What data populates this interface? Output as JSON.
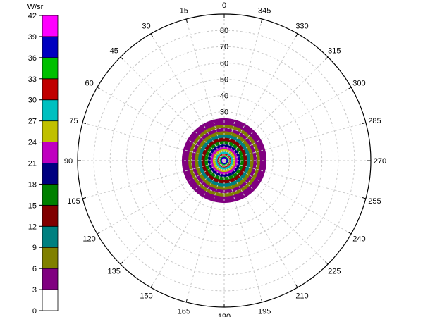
{
  "chart_data": {
    "type": "heatmap",
    "subtype": "polar-intensity",
    "colorbar": {
      "unit_label": "W/sr",
      "ticks": [
        "0",
        "3",
        "6",
        "9",
        "12",
        "15",
        "18",
        "21",
        "24",
        "27",
        "30",
        "33",
        "36",
        "39",
        "42"
      ],
      "bands": [
        {
          "min": 0,
          "max": 3,
          "color": "#ffffff"
        },
        {
          "min": 3,
          "max": 6,
          "color": "#800080"
        },
        {
          "min": 6,
          "max": 9,
          "color": "#808000"
        },
        {
          "min": 9,
          "max": 12,
          "color": "#008080"
        },
        {
          "min": 12,
          "max": 15,
          "color": "#800000"
        },
        {
          "min": 15,
          "max": 18,
          "color": "#008000"
        },
        {
          "min": 18,
          "max": 21,
          "color": "#000080"
        },
        {
          "min": 21,
          "max": 24,
          "color": "#c000c0"
        },
        {
          "min": 24,
          "max": 27,
          "color": "#c0c000"
        },
        {
          "min": 27,
          "max": 30,
          "color": "#00c0c0"
        },
        {
          "min": 30,
          "max": 33,
          "color": "#c00000"
        },
        {
          "min": 33,
          "max": 36,
          "color": "#00c000"
        },
        {
          "min": 36,
          "max": 39,
          "color": "#0000c0"
        },
        {
          "min": 39,
          "max": 42,
          "color": "#ff00ff"
        }
      ]
    },
    "angular_ticks": [
      "0",
      "15",
      "30",
      "45",
      "60",
      "75",
      "90",
      "105",
      "120",
      "135",
      "150",
      "165",
      "180",
      "195",
      "210",
      "225",
      "240",
      "255",
      "270",
      "285",
      "300",
      "315",
      "330",
      "345"
    ],
    "radial_ticks": [
      "30",
      "40",
      "50",
      "60",
      "70",
      "80"
    ],
    "radial_range": [
      0,
      90
    ],
    "grid": true,
    "intensity_rings": [
      {
        "r": 26,
        "level": 1
      },
      {
        "r": 22,
        "level": 2
      },
      {
        "r": 20,
        "level": 1
      },
      {
        "r": 18,
        "level": 2
      },
      {
        "r": 16,
        "level": 3
      },
      {
        "r": 14,
        "level": 4
      },
      {
        "r": 12,
        "level": 5
      },
      {
        "r": 10,
        "level": 6
      },
      {
        "r": 8.5,
        "level": 7
      },
      {
        "r": 7,
        "level": 8
      },
      {
        "r": 5.5,
        "level": 9
      },
      {
        "r": 4.2,
        "level": 10
      },
      {
        "r": 3.2,
        "level": 11
      },
      {
        "r": 2.3,
        "level": 12
      },
      {
        "r": 1.5,
        "level": 13
      }
    ]
  }
}
